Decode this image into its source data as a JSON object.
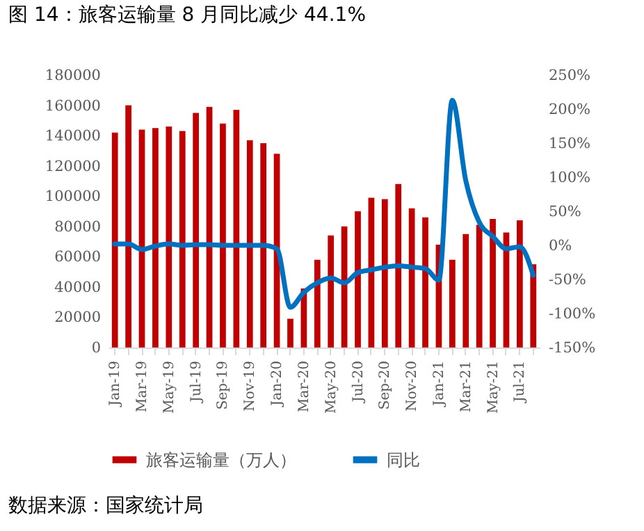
{
  "chart_data": {
    "type": "bar",
    "title": "图 14：旅客运输量 8 月同比减少 44.1%",
    "annotations": [
      "数据来源：国家统计局"
    ],
    "categories": [
      "Jan-19",
      null,
      "Mar-19",
      null,
      "May-19",
      null,
      "Jul-19",
      null,
      "Sep-19",
      null,
      "Nov-19",
      null,
      "Jan-20",
      null,
      "Mar-20",
      null,
      "May-20",
      null,
      "Jul-20",
      null,
      "Sep-20",
      null,
      "Nov-20",
      null,
      "Jan-21",
      null,
      "Mar-21",
      null,
      "May-21",
      null,
      "Jul-21",
      null
    ],
    "series": [
      {
        "name": "旅客运输量（万人）",
        "color": "#c00000",
        "values": [
          142000,
          160000,
          144000,
          145000,
          146000,
          143000,
          155000,
          159000,
          148000,
          157000,
          137000,
          135000,
          128000,
          19000,
          39000,
          58000,
          74000,
          80000,
          90000,
          99000,
          98000,
          108000,
          92000,
          86000,
          68000,
          58000,
          75000,
          81000,
          85000,
          76000,
          84000,
          55000
        ]
      },
      {
        "name": "同比",
        "type": "line",
        "axis": "y2",
        "color": "#0070c0",
        "values": [
          2,
          2,
          -6,
          -1,
          2,
          0,
          1,
          1,
          0,
          0,
          0,
          0,
          -5,
          -91,
          -69,
          -55,
          -48,
          -55,
          -40,
          -36,
          -32,
          -30,
          -32,
          -34,
          -51,
          213,
          95,
          34,
          13,
          -5,
          -2,
          -44
        ]
      }
    ],
    "ylim": [
      0,
      180000
    ],
    "yticks": [
      0,
      20000,
      40000,
      60000,
      80000,
      100000,
      120000,
      140000,
      160000,
      180000
    ],
    "y2lim": [
      -150,
      250
    ],
    "y2ticks": [
      {
        "value": -150,
        "label": "-150%"
      },
      {
        "value": -100,
        "label": "-100%"
      },
      {
        "value": -50,
        "label": "-50%"
      },
      {
        "value": 0,
        "label": "0%"
      },
      {
        "value": 50,
        "label": "50%"
      },
      {
        "value": 100,
        "label": "100%"
      },
      {
        "value": 150,
        "label": "150%"
      },
      {
        "value": 200,
        "label": "200%"
      },
      {
        "value": 250,
        "label": "250%"
      }
    ],
    "legend": "bottom",
    "grid": false
  }
}
